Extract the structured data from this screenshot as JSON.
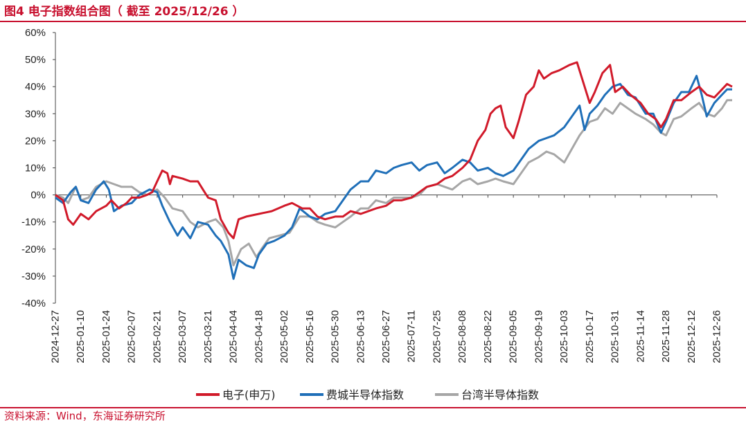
{
  "figure": {
    "title": "图4  电子指数组合图（ 截至 2025/12/26 ）",
    "source": "资料来源：Wind，东海证券研究所"
  },
  "chart_data": {
    "type": "line",
    "ylim": [
      -40,
      60
    ],
    "y_ticks": [
      "60%",
      "50%",
      "40%",
      "30%",
      "20%",
      "10%",
      "0%",
      "-10%",
      "-20%",
      "-30%",
      "-40%"
    ],
    "y_tick_values": [
      60,
      50,
      40,
      30,
      20,
      10,
      0,
      -10,
      -20,
      -30,
      -40
    ],
    "x_ticks": [
      "2024-12-27",
      "2025-01-10",
      "2025-01-24",
      "2025-02-07",
      "2025-02-21",
      "2025-03-07",
      "2025-03-21",
      "2025-04-04",
      "2025-04-18",
      "2025-05-02",
      "2025-05-16",
      "2025-05-30",
      "2025-06-13",
      "2025-06-27",
      "2025-07-11",
      "2025-07-25",
      "2025-08-08",
      "2025-08-22",
      "2025-09-05",
      "2025-09-19",
      "2025-10-03",
      "2025-10-17",
      "2025-10-31",
      "2025-11-14",
      "2025-11-28",
      "2025-12-12",
      "2025-12-26"
    ],
    "legend_position": "bottom",
    "series": [
      {
        "name": "电子(申万)",
        "color": "#d11a2a",
        "points": [
          [
            0,
            0
          ],
          [
            0.3,
            -2
          ],
          [
            0.5,
            -9
          ],
          [
            0.7,
            -11
          ],
          [
            1,
            -7
          ],
          [
            1.3,
            -9
          ],
          [
            1.6,
            -6
          ],
          [
            2,
            -4
          ],
          [
            2.2,
            -2
          ],
          [
            2.5,
            -5
          ],
          [
            2.8,
            -3
          ],
          [
            3,
            -1
          ],
          [
            3.3,
            -1
          ],
          [
            3.6,
            0
          ],
          [
            3.8,
            1
          ],
          [
            4,
            5
          ],
          [
            4.2,
            9
          ],
          [
            4.4,
            8
          ],
          [
            4.5,
            4
          ],
          [
            4.6,
            7
          ],
          [
            5,
            6
          ],
          [
            5.3,
            5
          ],
          [
            5.6,
            5
          ],
          [
            5.8,
            2
          ],
          [
            6,
            -1
          ],
          [
            6.3,
            -2
          ],
          [
            6.5,
            -9
          ],
          [
            6.8,
            -14
          ],
          [
            7,
            -16
          ],
          [
            7.2,
            -9
          ],
          [
            7.5,
            -8
          ],
          [
            8,
            -7
          ],
          [
            8.5,
            -6
          ],
          [
            9,
            -4
          ],
          [
            9.3,
            -3
          ],
          [
            9.7,
            -5
          ],
          [
            10,
            -5
          ],
          [
            10.3,
            -8
          ],
          [
            10.6,
            -9
          ],
          [
            11,
            -8
          ],
          [
            11.3,
            -8
          ],
          [
            11.6,
            -6
          ],
          [
            12,
            -7
          ],
          [
            12.3,
            -6
          ],
          [
            12.6,
            -5
          ],
          [
            13,
            -4
          ],
          [
            13.3,
            -2
          ],
          [
            13.6,
            -2
          ],
          [
            14,
            -1
          ],
          [
            14.3,
            1
          ],
          [
            14.6,
            3
          ],
          [
            15,
            4
          ],
          [
            15.3,
            6
          ],
          [
            15.6,
            7
          ],
          [
            16,
            10
          ],
          [
            16.3,
            13
          ],
          [
            16.6,
            20
          ],
          [
            16.9,
            24
          ],
          [
            17.1,
            30
          ],
          [
            17.3,
            32
          ],
          [
            17.5,
            33
          ],
          [
            17.7,
            25
          ],
          [
            18,
            21
          ],
          [
            18.2,
            27
          ],
          [
            18.5,
            37
          ],
          [
            18.8,
            40
          ],
          [
            19,
            46
          ],
          [
            19.2,
            43
          ],
          [
            19.5,
            45
          ],
          [
            19.8,
            46
          ],
          [
            20.2,
            48
          ],
          [
            20.5,
            49
          ],
          [
            20.8,
            40
          ],
          [
            21,
            34
          ],
          [
            21.2,
            38
          ],
          [
            21.5,
            45
          ],
          [
            21.8,
            48
          ],
          [
            22,
            38
          ],
          [
            22.3,
            40
          ],
          [
            22.6,
            37
          ],
          [
            23,
            34
          ],
          [
            23.3,
            30
          ],
          [
            23.6,
            28
          ],
          [
            23.8,
            25
          ],
          [
            24,
            28
          ],
          [
            24.3,
            35
          ],
          [
            24.6,
            35
          ],
          [
            25,
            38
          ],
          [
            25.3,
            40
          ],
          [
            25.6,
            37
          ],
          [
            25.9,
            36
          ],
          [
            26.2,
            39
          ],
          [
            26.4,
            41
          ],
          [
            26.6,
            40
          ]
        ]
      },
      {
        "name": "费城半导体指数",
        "color": "#1f6fb8",
        "points": [
          [
            0,
            -1
          ],
          [
            0.3,
            -3
          ],
          [
            0.6,
            1
          ],
          [
            0.8,
            3
          ],
          [
            1,
            -2
          ],
          [
            1.3,
            -3
          ],
          [
            1.6,
            2
          ],
          [
            1.9,
            5
          ],
          [
            2.1,
            2
          ],
          [
            2.3,
            -6
          ],
          [
            2.6,
            -4
          ],
          [
            3,
            -3
          ],
          [
            3.3,
            0
          ],
          [
            3.7,
            2
          ],
          [
            4,
            1
          ],
          [
            4.2,
            -4
          ],
          [
            4.5,
            -10
          ],
          [
            4.8,
            -15
          ],
          [
            5,
            -12
          ],
          [
            5.3,
            -16
          ],
          [
            5.6,
            -10
          ],
          [
            6,
            -11
          ],
          [
            6.3,
            -15
          ],
          [
            6.5,
            -17
          ],
          [
            6.8,
            -22
          ],
          [
            7,
            -31
          ],
          [
            7.2,
            -24
          ],
          [
            7.5,
            -26
          ],
          [
            7.8,
            -27
          ],
          [
            8,
            -22
          ],
          [
            8.3,
            -18
          ],
          [
            8.6,
            -17
          ],
          [
            9,
            -15
          ],
          [
            9.3,
            -12
          ],
          [
            9.6,
            -5
          ],
          [
            10,
            -8
          ],
          [
            10.3,
            -9
          ],
          [
            10.6,
            -7
          ],
          [
            11,
            -6
          ],
          [
            11.3,
            -2
          ],
          [
            11.6,
            2
          ],
          [
            12,
            5
          ],
          [
            12.3,
            5
          ],
          [
            12.6,
            9
          ],
          [
            13,
            8
          ],
          [
            13.3,
            10
          ],
          [
            13.6,
            11
          ],
          [
            14,
            12
          ],
          [
            14.3,
            9
          ],
          [
            14.6,
            11
          ],
          [
            15,
            12
          ],
          [
            15.3,
            8
          ],
          [
            15.6,
            10
          ],
          [
            16,
            13
          ],
          [
            16.3,
            12
          ],
          [
            16.6,
            9
          ],
          [
            17,
            10
          ],
          [
            17.3,
            8
          ],
          [
            17.6,
            7
          ],
          [
            18,
            9
          ],
          [
            18.3,
            13
          ],
          [
            18.6,
            17
          ],
          [
            19,
            20
          ],
          [
            19.3,
            21
          ],
          [
            19.6,
            22
          ],
          [
            20,
            25
          ],
          [
            20.3,
            29
          ],
          [
            20.6,
            33
          ],
          [
            20.8,
            24
          ],
          [
            21,
            30
          ],
          [
            21.3,
            33
          ],
          [
            21.6,
            37
          ],
          [
            21.9,
            40
          ],
          [
            22.2,
            41
          ],
          [
            22.5,
            37
          ],
          [
            22.8,
            36
          ],
          [
            23.2,
            30
          ],
          [
            23.5,
            30
          ],
          [
            23.8,
            23
          ],
          [
            24,
            27
          ],
          [
            24.3,
            34
          ],
          [
            24.6,
            38
          ],
          [
            24.9,
            38
          ],
          [
            25.2,
            44
          ],
          [
            25.4,
            37
          ],
          [
            25.6,
            29
          ],
          [
            25.9,
            34
          ],
          [
            26.2,
            37
          ],
          [
            26.4,
            39
          ],
          [
            26.6,
            39
          ]
        ]
      },
      {
        "name": "台湾半导体指数",
        "color": "#a6a6a6",
        "points": [
          [
            0,
            0
          ],
          [
            0.3,
            -1
          ],
          [
            0.5,
            -3
          ],
          [
            0.8,
            3
          ],
          [
            1,
            -2
          ],
          [
            1.3,
            -1
          ],
          [
            1.6,
            3
          ],
          [
            2,
            5
          ],
          [
            2.3,
            4
          ],
          [
            2.6,
            3
          ],
          [
            3,
            3
          ],
          [
            3.3,
            1
          ],
          [
            3.6,
            0
          ],
          [
            4,
            2
          ],
          [
            4.3,
            -1
          ],
          [
            4.6,
            -5
          ],
          [
            5,
            -6
          ],
          [
            5.3,
            -10
          ],
          [
            5.6,
            -12
          ],
          [
            6,
            -10
          ],
          [
            6.3,
            -9
          ],
          [
            6.6,
            -12
          ],
          [
            6.8,
            -17
          ],
          [
            7,
            -26
          ],
          [
            7.3,
            -20
          ],
          [
            7.6,
            -18
          ],
          [
            7.9,
            -23
          ],
          [
            8.1,
            -20
          ],
          [
            8.4,
            -16
          ],
          [
            8.8,
            -15
          ],
          [
            9.2,
            -14
          ],
          [
            9.6,
            -8
          ],
          [
            10,
            -8
          ],
          [
            10.3,
            -10
          ],
          [
            10.6,
            -11
          ],
          [
            11,
            -12
          ],
          [
            11.3,
            -10
          ],
          [
            11.6,
            -8
          ],
          [
            12,
            -5
          ],
          [
            12.3,
            -5
          ],
          [
            12.6,
            -2
          ],
          [
            13,
            -3
          ],
          [
            13.3,
            -1
          ],
          [
            13.6,
            -1
          ],
          [
            14,
            -1
          ],
          [
            14.3,
            0
          ],
          [
            14.6,
            3
          ],
          [
            15,
            4
          ],
          [
            15.3,
            3
          ],
          [
            15.6,
            2
          ],
          [
            16,
            5
          ],
          [
            16.3,
            6
          ],
          [
            16.6,
            4
          ],
          [
            17,
            5
          ],
          [
            17.3,
            6
          ],
          [
            17.6,
            5
          ],
          [
            18,
            4
          ],
          [
            18.3,
            8
          ],
          [
            18.6,
            12
          ],
          [
            19,
            14
          ],
          [
            19.3,
            16
          ],
          [
            19.6,
            15
          ],
          [
            20,
            12
          ],
          [
            20.3,
            17
          ],
          [
            20.6,
            22
          ],
          [
            21,
            27
          ],
          [
            21.3,
            28
          ],
          [
            21.6,
            32
          ],
          [
            21.9,
            30
          ],
          [
            22.2,
            34
          ],
          [
            22.5,
            32
          ],
          [
            22.8,
            30
          ],
          [
            23.2,
            28
          ],
          [
            23.5,
            26
          ],
          [
            23.8,
            23
          ],
          [
            24,
            22
          ],
          [
            24.3,
            28
          ],
          [
            24.6,
            29
          ],
          [
            25,
            32
          ],
          [
            25.3,
            34
          ],
          [
            25.6,
            30
          ],
          [
            25.9,
            29
          ],
          [
            26.2,
            32
          ],
          [
            26.4,
            35
          ],
          [
            26.6,
            35
          ]
        ]
      }
    ]
  }
}
